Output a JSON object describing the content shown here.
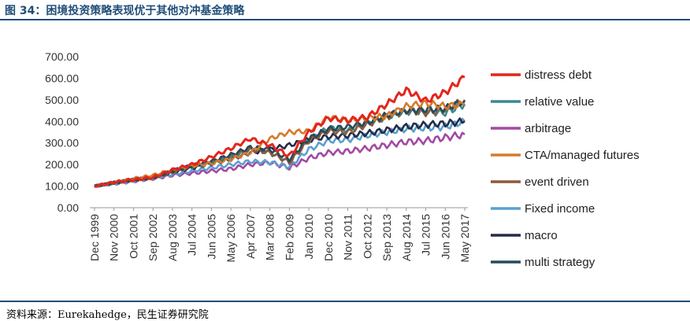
{
  "header": {
    "title": "图 34：困境投资策略表现优于其他对冲基金策略"
  },
  "footer": {
    "source": "资料来源：Eurekahedge，民生证券研究院"
  },
  "chart_data": {
    "type": "line",
    "title": "",
    "xlabel": "",
    "ylabel": "",
    "ylim": [
      0,
      700
    ],
    "yticks": [
      "0.00",
      "100.00",
      "200.00",
      "300.00",
      "400.00",
      "500.00",
      "600.00",
      "700.00"
    ],
    "x_tick_labels": [
      "Dec 1999",
      "Nov 2000",
      "Oct 2001",
      "Sep 2002",
      "Aug 2003",
      "Jul 2004",
      "Jun 2005",
      "May 2006",
      "Apr 2007",
      "Mar 2008",
      "Feb 2009",
      "Jan 2010",
      "Dec 2010",
      "Nov 2011",
      "Oct 2012",
      "Sep 2013",
      "Aug 2014",
      "Jul 2015",
      "Jun 2016",
      "May 2017"
    ],
    "x": [
      "1999-12",
      "2000-11",
      "2001-10",
      "2002-09",
      "2003-08",
      "2004-07",
      "2005-06",
      "2006-05",
      "2007-04",
      "2008-03",
      "2009-02",
      "2010-01",
      "2010-12",
      "2011-11",
      "2012-10",
      "2013-09",
      "2014-08",
      "2015-07",
      "2016-06",
      "2017-05"
    ],
    "legend_position": "right",
    "grid": false,
    "series": [
      {
        "name": "distress debt",
        "color": "#e3261c",
        "values": [
          100,
          118,
          130,
          140,
          175,
          200,
          235,
          275,
          320,
          290,
          240,
          350,
          415,
          405,
          420,
          480,
          545,
          495,
          535,
          605
        ]
      },
      {
        "name": "relative value",
        "color": "#3b8a8f",
        "values": [
          100,
          115,
          130,
          140,
          165,
          190,
          210,
          235,
          270,
          260,
          215,
          315,
          370,
          360,
          390,
          420,
          445,
          445,
          440,
          480
        ]
      },
      {
        "name": "arbitrage",
        "color": "#a349a4",
        "values": [
          100,
          110,
          122,
          135,
          150,
          160,
          170,
          180,
          200,
          210,
          185,
          230,
          255,
          262,
          275,
          290,
          305,
          310,
          325,
          340
        ]
      },
      {
        "name": "CTA/managed futures",
        "color": "#d57a2b",
        "values": [
          100,
          118,
          135,
          150,
          175,
          195,
          205,
          225,
          255,
          320,
          350,
          355,
          420,
          405,
          415,
          425,
          470,
          485,
          470,
          480
        ]
      },
      {
        "name": "event driven",
        "color": "#8b5a3c",
        "values": [
          100,
          115,
          128,
          138,
          165,
          195,
          215,
          240,
          270,
          255,
          210,
          310,
          355,
          350,
          385,
          420,
          450,
          440,
          455,
          500
        ]
      },
      {
        "name": "Fixed income",
        "color": "#5aa0cf",
        "values": [
          100,
          112,
          125,
          138,
          155,
          170,
          185,
          200,
          215,
          210,
          190,
          270,
          310,
          315,
          335,
          350,
          365,
          370,
          375,
          400
        ]
      },
      {
        "name": "macro",
        "color": "#252b4a",
        "values": [
          100,
          115,
          130,
          142,
          165,
          185,
          205,
          225,
          255,
          270,
          290,
          315,
          330,
          335,
          345,
          360,
          375,
          385,
          390,
          400
        ]
      },
      {
        "name": "multi strategy",
        "color": "#254a5a",
        "values": [
          100,
          116,
          130,
          140,
          170,
          195,
          215,
          245,
          280,
          270,
          225,
          320,
          365,
          375,
          395,
          430,
          450,
          455,
          460,
          495
        ]
      }
    ]
  }
}
